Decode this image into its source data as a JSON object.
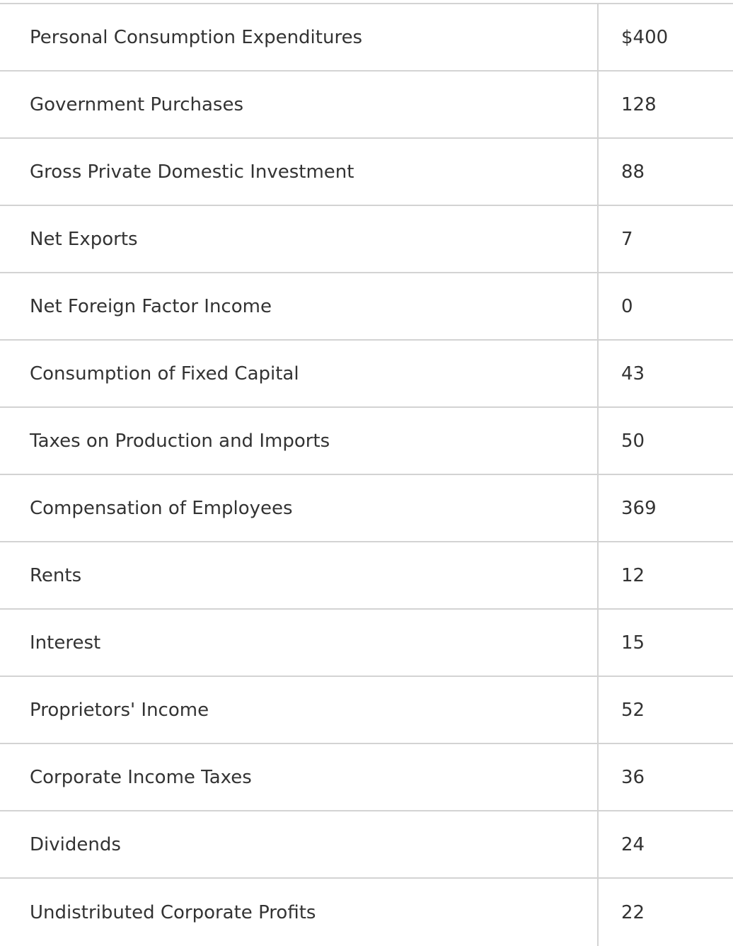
{
  "table": {
    "rows": [
      {
        "label": "Personal Consumption Expenditures",
        "value": "$400"
      },
      {
        "label": "Government Purchases",
        "value": "128"
      },
      {
        "label": "Gross Private Domestic Investment",
        "value": "88"
      },
      {
        "label": "Net Exports",
        "value": "7"
      },
      {
        "label": "Net Foreign Factor Income",
        "value": "0"
      },
      {
        "label": "Consumption of Fixed Capital",
        "value": "43"
      },
      {
        "label": "Taxes on Production and Imports",
        "value": "50"
      },
      {
        "label": "Compensation of Employees",
        "value": "369"
      },
      {
        "label": "Rents",
        "value": "12"
      },
      {
        "label": "Interest",
        "value": "15"
      },
      {
        "label": "Proprietors' Income",
        "value": "52"
      },
      {
        "label": "Corporate Income Taxes",
        "value": "36"
      },
      {
        "label": "Dividends",
        "value": "24"
      },
      {
        "label": "Undistributed Corporate Profits",
        "value": "22"
      }
    ]
  }
}
